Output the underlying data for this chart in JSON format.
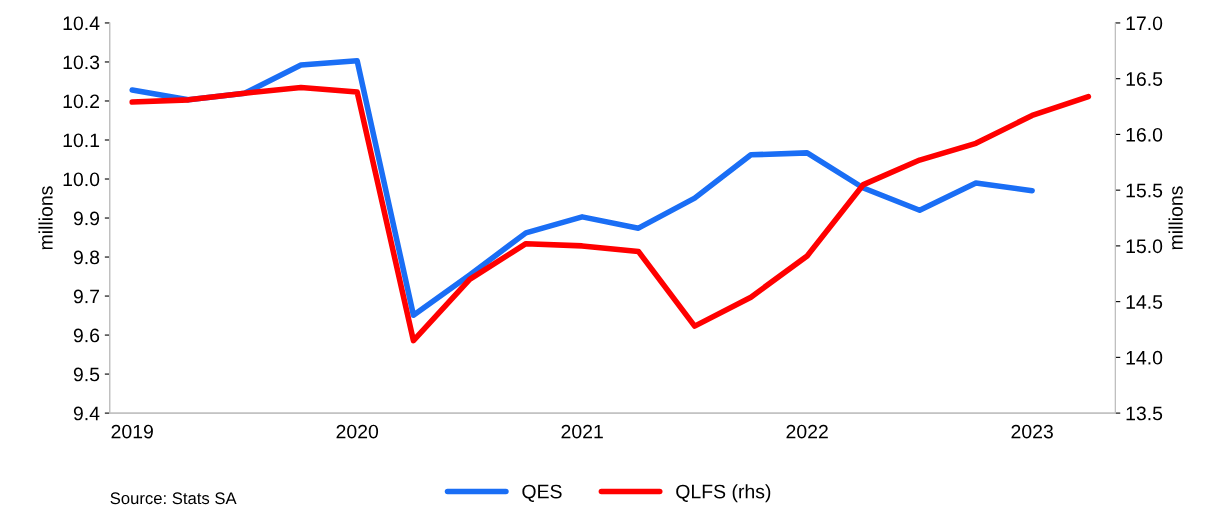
{
  "chart_data": {
    "type": "line",
    "x": [
      2019,
      2019.25,
      2019.5,
      2019.75,
      2020,
      2020.25,
      2020.5,
      2020.75,
      2021,
      2021.25,
      2021.5,
      2021.75,
      2022,
      2022.25,
      2022.5,
      2022.75,
      2023,
      2023.25
    ],
    "series": [
      {
        "name": "QES",
        "color": "#1a6ef5",
        "values": [
          10.228,
          10.203,
          10.22,
          10.292,
          10.303,
          9.651,
          9.754,
          9.862,
          9.903,
          9.874,
          9.951,
          10.062,
          10.067,
          9.977,
          9.92,
          9.99,
          9.97,
          null
        ]
      },
      {
        "name": "QLFS (rhs)",
        "color": "#ff0000",
        "axis": "y2",
        "values": [
          16.29,
          16.31,
          16.37,
          16.42,
          16.38,
          14.15,
          14.7,
          15.02,
          15.0,
          14.95,
          14.28,
          14.54,
          14.91,
          15.55,
          15.77,
          15.92,
          16.17,
          16.34
        ]
      }
    ],
    "ylabel": "millions",
    "y2label": "millions",
    "xlim": [
      2018.9,
      2023.37
    ],
    "xticks": [
      2019,
      2020,
      2021,
      2022,
      2023
    ],
    "ylim": [
      9.4,
      10.4
    ],
    "yticks": [
      {
        "value": 9.4,
        "label": "9.4"
      },
      {
        "value": 9.5,
        "label": "9.5"
      },
      {
        "value": 9.6,
        "label": "9.6"
      },
      {
        "value": 9.7,
        "label": "9.7"
      },
      {
        "value": 9.8,
        "label": "9.8"
      },
      {
        "value": 9.9,
        "label": "9.9"
      },
      {
        "value": 10.0,
        "label": "10.0"
      },
      {
        "value": 10.1,
        "label": "10.1"
      },
      {
        "value": 10.2,
        "label": "10.2"
      },
      {
        "value": 10.3,
        "label": "10.3"
      },
      {
        "value": 10.4,
        "label": "10.4"
      }
    ],
    "y2lim": [
      13.5,
      17.0
    ],
    "y2ticks": [
      {
        "value": 13.5,
        "label": "13.5"
      },
      {
        "value": 14.0,
        "label": "14.0"
      },
      {
        "value": 14.5,
        "label": "14.5"
      },
      {
        "value": 15.0,
        "label": "15.0"
      },
      {
        "value": 15.5,
        "label": "15.5"
      },
      {
        "value": 16.0,
        "label": "16.0"
      },
      {
        "value": 16.5,
        "label": "16.5"
      },
      {
        "value": 17.0,
        "label": "17.0"
      }
    ],
    "legend": "bottom",
    "grid": false,
    "marker": "none",
    "line_style": "solid",
    "annotations": [
      "Source: Stats SA"
    ]
  }
}
